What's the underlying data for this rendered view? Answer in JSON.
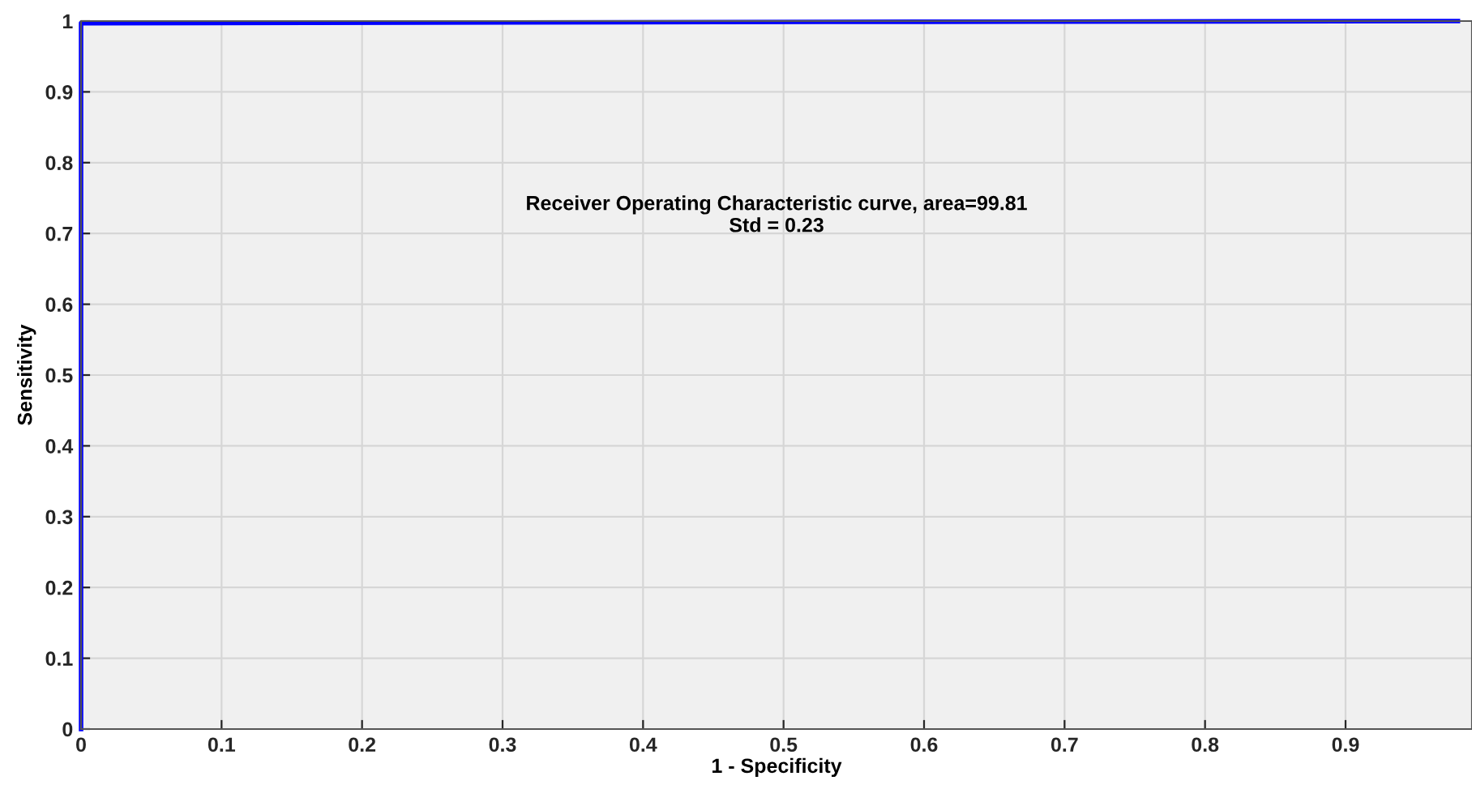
{
  "chart_data": {
    "type": "line",
    "xlabel": "1 - Specificity",
    "ylabel": "Sensitivity",
    "annotations": [
      "Receiver Operating Characteristic curve, area=99.81\nStd = 0.23"
    ],
    "series": [
      {
        "color": "#0000ff",
        "x": [
          0,
          0,
          0.3,
          0.6,
          0.98
        ],
        "values": [
          0,
          0.997,
          0.998,
          0.999,
          1
        ]
      }
    ],
    "xlim": [
      0,
      0.99
    ],
    "ylim": [
      0,
      1
    ],
    "xticks": [
      0,
      0.1,
      0.2,
      0.3,
      0.4,
      0.5,
      0.6,
      0.7,
      0.8,
      0.9
    ],
    "yticks": [
      0,
      0.1,
      0.2,
      0.3,
      0.4,
      0.5,
      0.6,
      0.7,
      0.8,
      0.9,
      1
    ],
    "grid": true,
    "legend": false,
    "marker": "none",
    "line_style": "solid"
  }
}
